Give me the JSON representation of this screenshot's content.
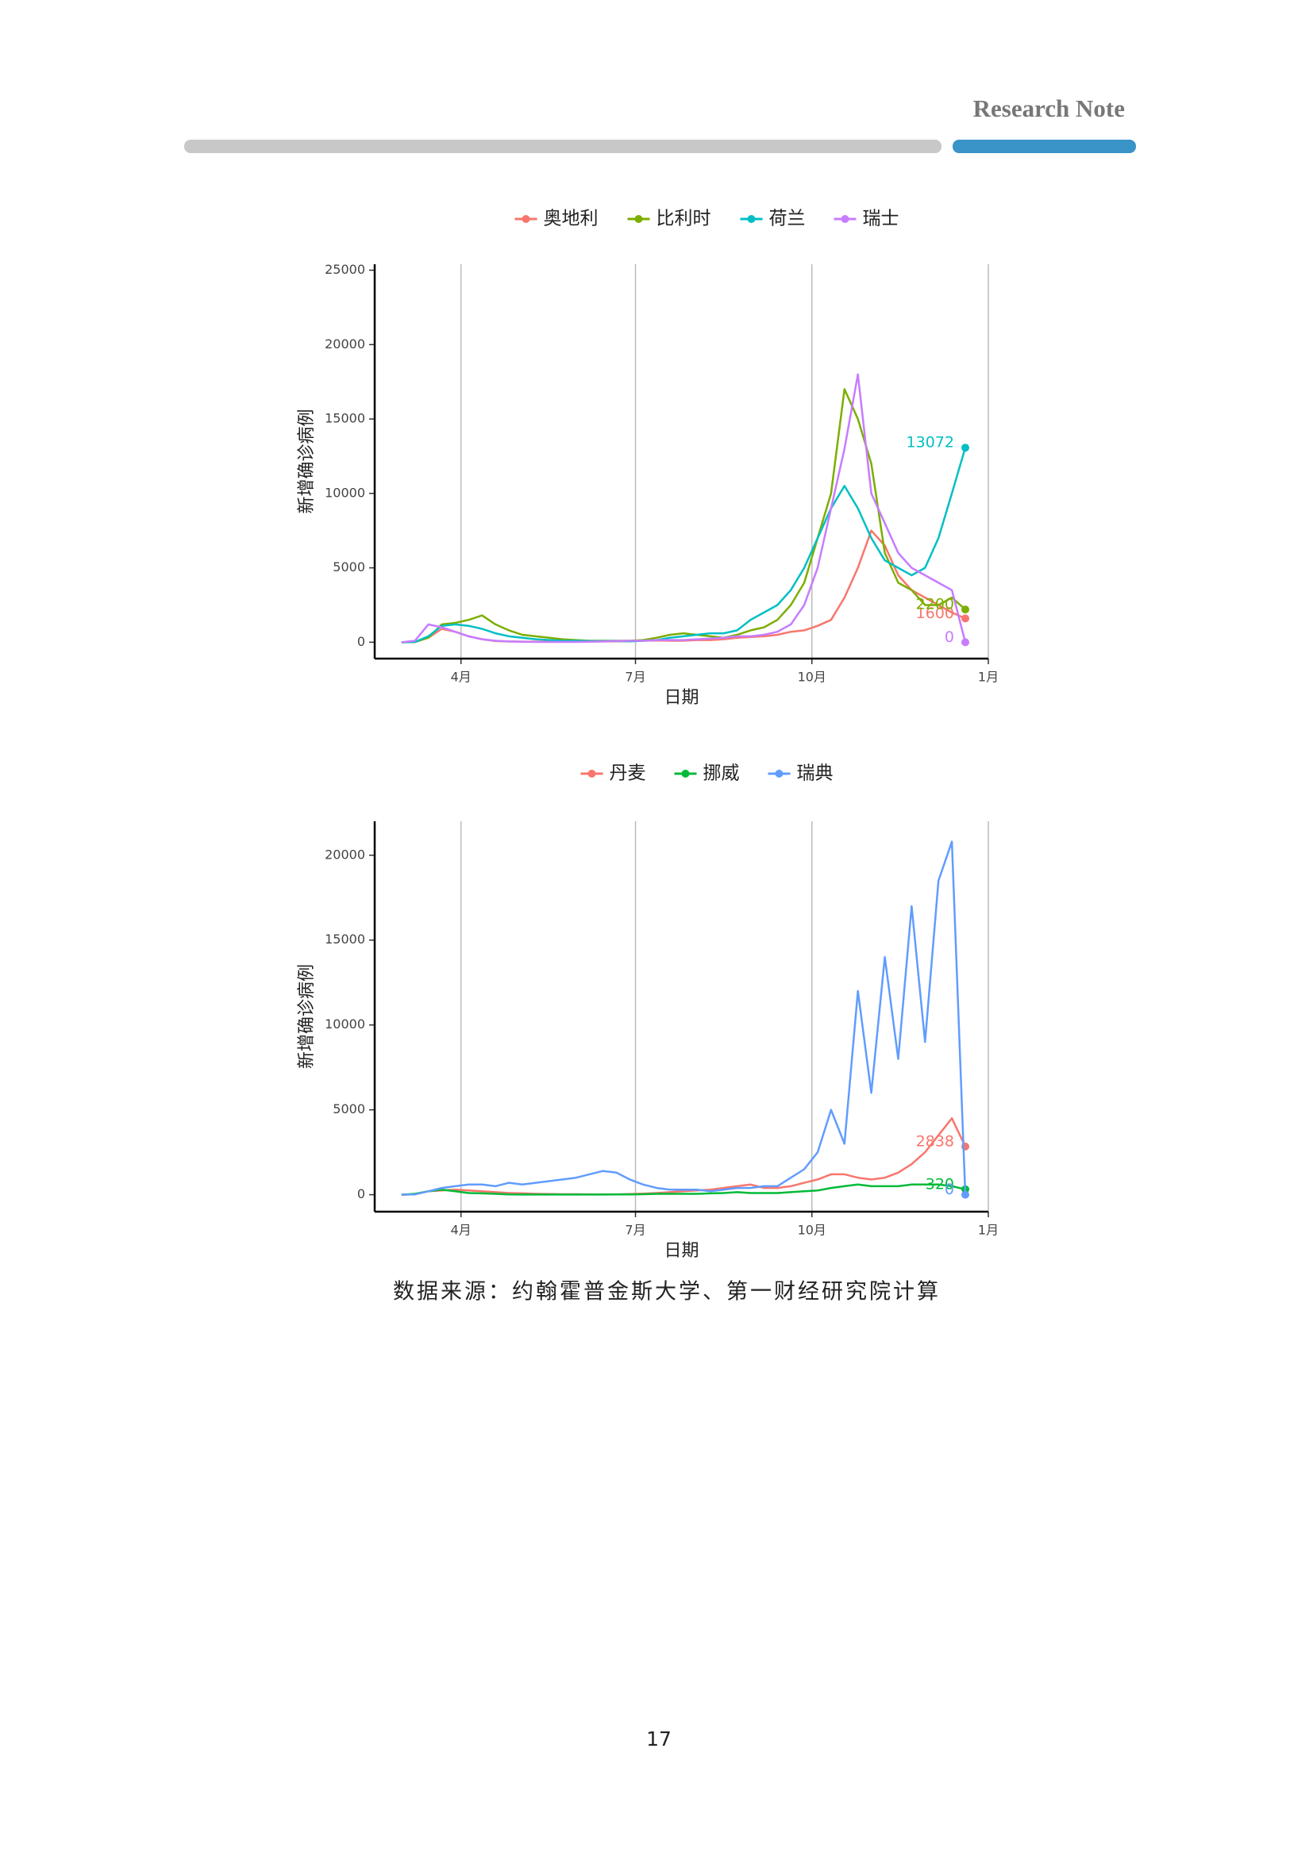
{
  "header": {
    "title": "Research Note"
  },
  "chart_data": [
    {
      "type": "line",
      "x_label": "日期",
      "y_label": "新增确诊病例",
      "grid": "x",
      "legend": "top",
      "x": [
        60,
        67,
        74,
        81,
        88,
        95,
        102,
        109,
        116,
        123,
        130,
        137,
        144,
        151,
        158,
        165,
        172,
        179,
        186,
        193,
        200,
        207,
        214,
        221,
        228,
        235,
        242,
        249,
        256,
        263,
        270,
        277,
        284,
        291,
        298,
        305,
        312,
        319,
        326,
        333,
        340,
        347,
        354
      ],
      "xlim": [
        46,
        366
      ],
      "xticks": [
        {
          "value": 91,
          "label": "4月"
        },
        {
          "value": 182,
          "label": "7月"
        },
        {
          "value": 274,
          "label": "10月"
        },
        {
          "value": 366,
          "label": "1月"
        }
      ],
      "ylim": [
        -1100,
        25400
      ],
      "yticks": [
        0,
        5000,
        10000,
        15000,
        20000,
        25000
      ],
      "series": [
        {
          "name": "奥地利",
          "color": "#F8766D",
          "values": [
            0,
            10,
            300,
            900,
            700,
            400,
            200,
            80,
            50,
            40,
            40,
            30,
            30,
            40,
            50,
            50,
            60,
            70,
            100,
            120,
            100,
            100,
            150,
            150,
            200,
            300,
            350,
            400,
            500,
            700,
            800,
            1100,
            1500,
            3000,
            5000,
            7500,
            6500,
            4500,
            3500,
            3000,
            2500,
            2000,
            1600
          ]
        },
        {
          "name": "比利时",
          "color": "#7CAE00",
          "values": [
            0,
            20,
            300,
            1200,
            1300,
            1500,
            1800,
            1200,
            800,
            500,
            400,
            300,
            200,
            150,
            100,
            100,
            100,
            100,
            150,
            300,
            500,
            600,
            500,
            400,
            300,
            500,
            800,
            1000,
            1500,
            2500,
            4000,
            7000,
            10000,
            17000,
            15000,
            12000,
            6000,
            4000,
            3500,
            2500,
            2500,
            3000,
            2200
          ]
        },
        {
          "name": "荷兰",
          "color": "#00BFC4",
          "values": [
            0,
            20,
            400,
            1100,
            1200,
            1100,
            900,
            600,
            400,
            300,
            200,
            150,
            100,
            100,
            80,
            80,
            80,
            60,
            100,
            150,
            300,
            400,
            500,
            600,
            600,
            800,
            1500,
            2000,
            2500,
            3500,
            5000,
            7000,
            9000,
            10500,
            9000,
            7000,
            5500,
            5000,
            4500,
            5000,
            7000,
            10000,
            13072
          ]
        },
        {
          "name": "瑞士",
          "color": "#C77CFF",
          "values": [
            0,
            100,
            1200,
            1000,
            700,
            400,
            200,
            100,
            50,
            30,
            20,
            20,
            20,
            20,
            30,
            50,
            80,
            100,
            100,
            150,
            150,
            150,
            200,
            250,
            300,
            400,
            400,
            500,
            700,
            1200,
            2500,
            5000,
            9000,
            13000,
            18000,
            10000,
            8000,
            6000,
            5000,
            4500,
            4000,
            3500,
            0
          ]
        }
      ]
    },
    {
      "type": "line",
      "x_label": "日期",
      "y_label": "新增确诊病例",
      "grid": "x",
      "legend": "top",
      "x": [
        60,
        67,
        74,
        81,
        88,
        95,
        102,
        109,
        116,
        123,
        130,
        137,
        144,
        151,
        158,
        165,
        172,
        179,
        186,
        193,
        200,
        207,
        214,
        221,
        228,
        235,
        242,
        249,
        256,
        263,
        270,
        277,
        284,
        291,
        298,
        305,
        312,
        319,
        326,
        333,
        340,
        347,
        354
      ],
      "xlim": [
        46,
        366
      ],
      "xticks": [
        {
          "value": 91,
          "label": "4月"
        },
        {
          "value": 182,
          "label": "7月"
        },
        {
          "value": 274,
          "label": "10月"
        },
        {
          "value": 366,
          "label": "1月"
        }
      ],
      "ylim": [
        -1000,
        22000
      ],
      "yticks": [
        0,
        5000,
        10000,
        15000,
        20000
      ],
      "series": [
        {
          "name": "丹麦",
          "color": "#F8766D",
          "values": [
            0,
            30,
            200,
            250,
            300,
            250,
            200,
            150,
            100,
            80,
            50,
            40,
            30,
            30,
            20,
            20,
            20,
            40,
            60,
            100,
            150,
            200,
            250,
            300,
            400,
            500,
            600,
            400,
            400,
            500,
            700,
            900,
            1200,
            1200,
            1000,
            900,
            1000,
            1300,
            1800,
            2500,
            3500,
            4500,
            2838
          ]
        },
        {
          "name": "挪威",
          "color": "#00BA38",
          "values": [
            0,
            50,
            200,
            300,
            200,
            100,
            80,
            50,
            20,
            10,
            10,
            10,
            10,
            10,
            10,
            10,
            20,
            20,
            30,
            50,
            50,
            50,
            50,
            80,
            100,
            150,
            100,
            100,
            100,
            150,
            200,
            250,
            400,
            500,
            600,
            500,
            500,
            500,
            600,
            600,
            600,
            500,
            320
          ]
        },
        {
          "name": "瑞典",
          "color": "#619CFF",
          "values": [
            0,
            20,
            200,
            400,
            500,
            600,
            600,
            500,
            700,
            600,
            700,
            800,
            900,
            1000,
            1200,
            1400,
            1300,
            900,
            600,
            400,
            300,
            300,
            300,
            200,
            300,
            400,
            400,
            500,
            500,
            1000,
            1500,
            2500,
            5000,
            3000,
            12000,
            6000,
            14000,
            8000,
            17000,
            9000,
            18500,
            20800,
            0
          ]
        }
      ]
    }
  ],
  "source": "数据来源：约翰霍普金斯大学、第一财经研究院计算",
  "page_number": "17"
}
